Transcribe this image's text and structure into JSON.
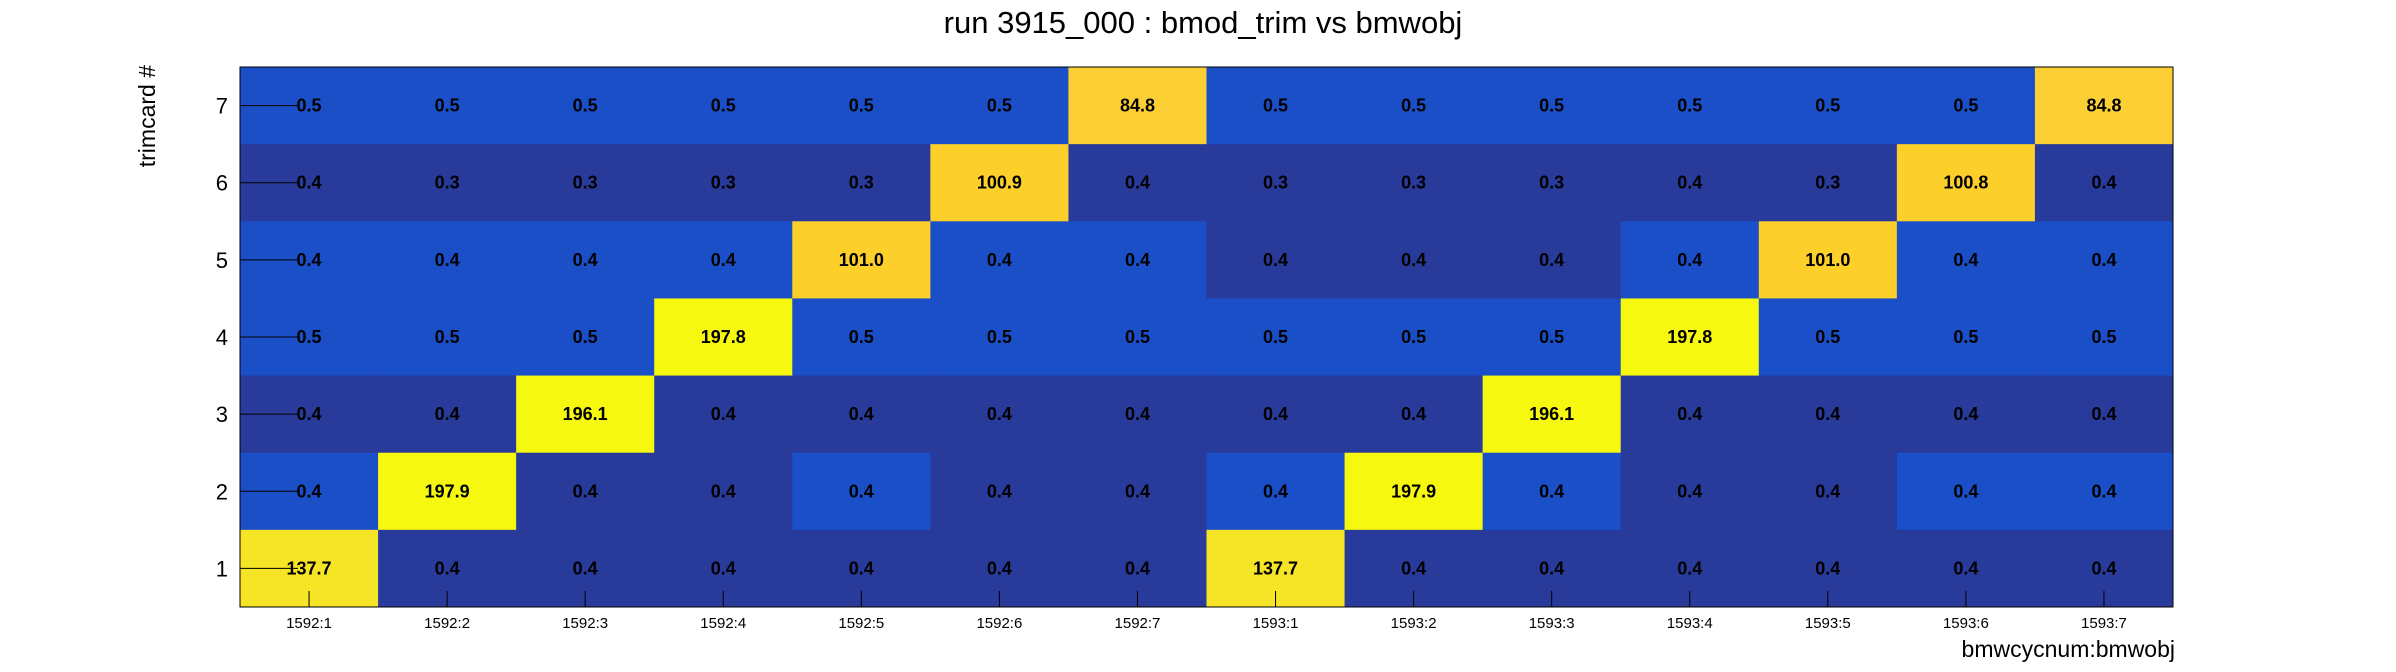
{
  "chart_data": {
    "type": "heatmap",
    "title": "run 3915_000 : bmod_trim vs bmwobj",
    "xlabel": "bmwcycnum:bmwobj",
    "ylabel": "trimcard #",
    "x_categories": [
      "1592:1",
      "1592:2",
      "1592:3",
      "1592:4",
      "1592:5",
      "1592:6",
      "1592:7",
      "1593:1",
      "1593:2",
      "1593:3",
      "1593:4",
      "1593:5",
      "1593:6",
      "1593:7"
    ],
    "y_categories": [
      "1",
      "2",
      "3",
      "4",
      "5",
      "6",
      "7"
    ],
    "rows": [
      {
        "y": "7",
        "values": [
          0.5,
          0.5,
          0.5,
          0.5,
          0.5,
          0.5,
          84.8,
          0.5,
          0.5,
          0.5,
          0.5,
          0.5,
          0.5,
          84.8
        ]
      },
      {
        "y": "6",
        "values": [
          0.4,
          0.3,
          0.3,
          0.3,
          0.3,
          100.9,
          0.4,
          0.3,
          0.3,
          0.3,
          0.4,
          0.3,
          100.8,
          0.4
        ]
      },
      {
        "y": "5",
        "values": [
          0.4,
          0.4,
          0.4,
          0.4,
          101.0,
          0.4,
          0.4,
          0.4,
          0.4,
          0.4,
          0.4,
          101.0,
          0.4,
          0.4
        ]
      },
      {
        "y": "4",
        "values": [
          0.5,
          0.5,
          0.5,
          197.8,
          0.5,
          0.5,
          0.5,
          0.5,
          0.5,
          0.5,
          197.8,
          0.5,
          0.5,
          0.5
        ]
      },
      {
        "y": "3",
        "values": [
          0.4,
          0.4,
          196.1,
          0.4,
          0.4,
          0.4,
          0.4,
          0.4,
          0.4,
          196.1,
          0.4,
          0.4,
          0.4,
          0.4
        ]
      },
      {
        "y": "2",
        "values": [
          0.4,
          197.9,
          0.4,
          0.4,
          0.4,
          0.4,
          0.4,
          0.4,
          197.9,
          0.4,
          0.4,
          0.4,
          0.4,
          0.4
        ]
      },
      {
        "y": "1",
        "values": [
          137.7,
          0.4,
          0.4,
          0.4,
          0.4,
          0.4,
          0.4,
          137.7,
          0.4,
          0.4,
          0.4,
          0.4,
          0.4,
          0.4
        ]
      }
    ],
    "label_format": "one_decimal",
    "colors": {
      "low_dark": "#283a9a",
      "low_mid": "#1a4fc8",
      "high_84": "#fcd034",
      "high_100": "#fccf2a",
      "high_137": "#f6e426",
      "high_197": "#f6f90f"
    }
  }
}
